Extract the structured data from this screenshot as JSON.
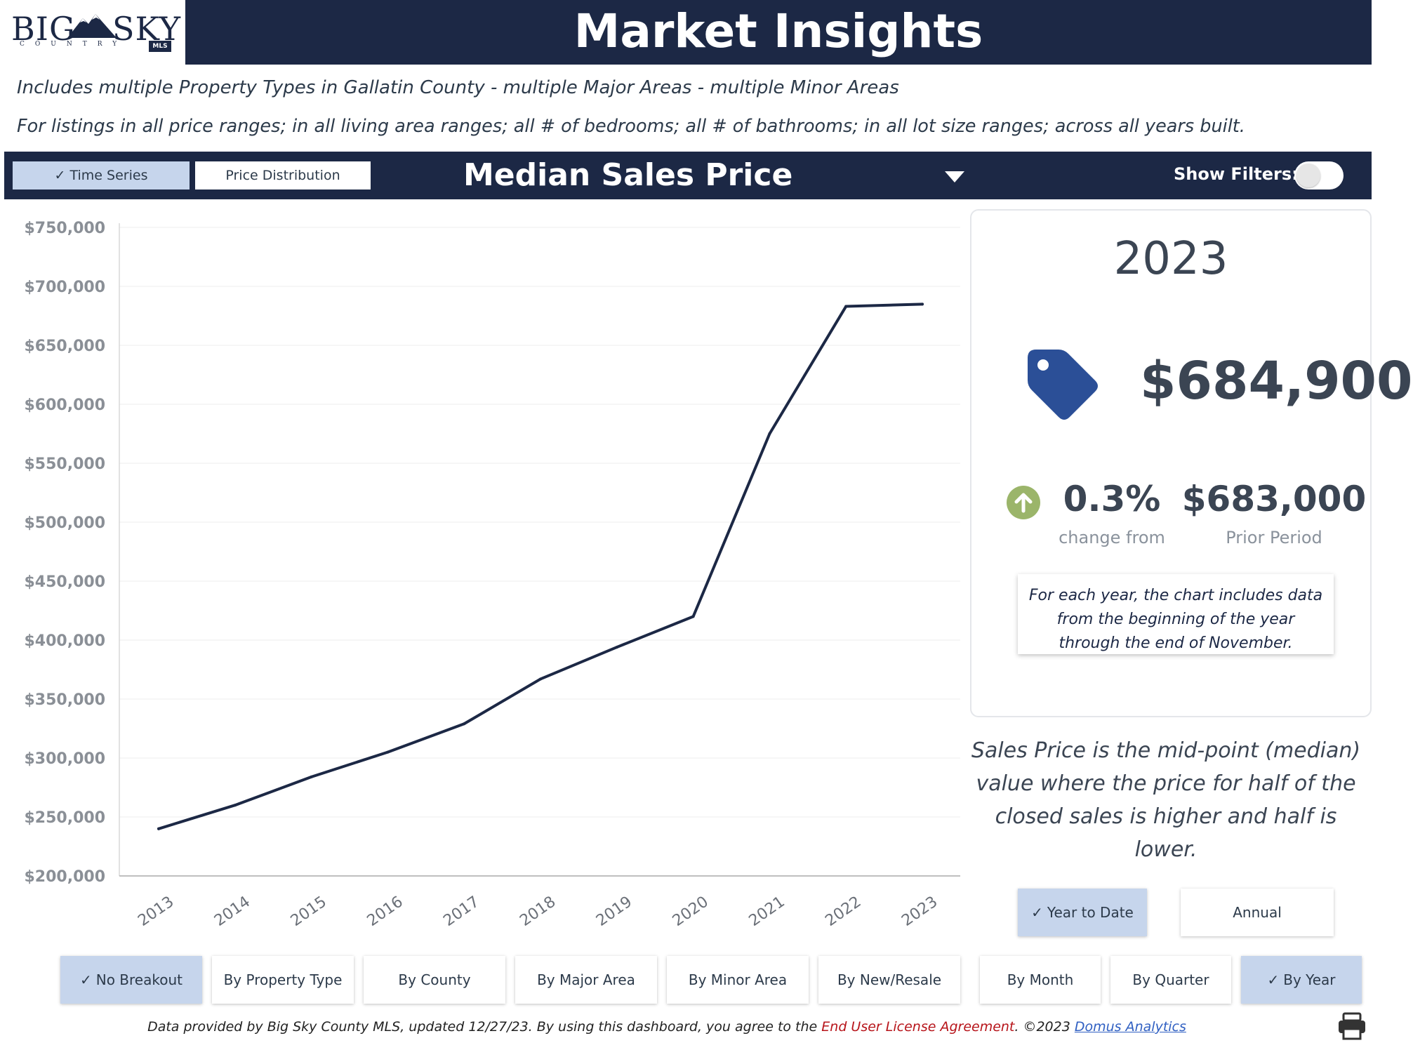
{
  "logo": {
    "word_left": "BIG",
    "word_right": "SKY",
    "sub": "COUNTRY",
    "badge": "MLS"
  },
  "header": {
    "title": "Market Insights"
  },
  "subtitles": {
    "line1": "Includes multiple Property Types in Gallatin County - multiple Major Areas - multiple Minor Areas",
    "line2": "For listings in all price ranges; in all living area ranges; all # of bedrooms; all # of bathrooms; in all lot size ranges; across all years built."
  },
  "toolbar": {
    "time_series": "Time Series",
    "price_distribution": "Price Distribution",
    "measure": "Median Sales Price",
    "show_filters": "Show Filters:"
  },
  "kpi": {
    "year": "2023",
    "value": "$684,900",
    "change_pct": "0.3%",
    "change_label": "change from",
    "prior_value": "$683,000",
    "prior_label": "Prior Period",
    "note": "For each year, the chart includes data from the beginning of the year through the end of November."
  },
  "definition": "Sales Price is the mid-point (median) value where the price for half of the closed sales is higher and half is lower.",
  "period_buttons": {
    "ytd": "Year to Date",
    "annual": "Annual"
  },
  "breakout_buttons": [
    {
      "label": "No Breakout",
      "selected": true
    },
    {
      "label": "By Property Type",
      "selected": false
    },
    {
      "label": "By County",
      "selected": false
    },
    {
      "label": "By Major Area",
      "selected": false
    },
    {
      "label": "By Minor Area",
      "selected": false
    },
    {
      "label": "By New/Resale",
      "selected": false
    }
  ],
  "interval_buttons": [
    {
      "label": "By Month",
      "selected": false
    },
    {
      "label": "By Quarter",
      "selected": false
    },
    {
      "label": "By Year",
      "selected": true
    }
  ],
  "footer": {
    "text1": "Data provided by Big Sky County MLS, updated 12/27/23.  By using this dashboard, you agree to the ",
    "eula": "End User License Agreement",
    "text2": ".  ©2023 ",
    "domus": "Domus Analytics"
  },
  "icons": {
    "tag": "price-tag-icon",
    "arrow": "arrow-up-circle-icon",
    "print": "print-icon",
    "check": "check-icon"
  },
  "colors": {
    "navy": "#1c2845",
    "selected": "#c6d5ec",
    "tag_blue": "#2b4f97",
    "up_green": "#9bb56a",
    "eula_red": "#b7141a",
    "link_blue": "#2f5fc2"
  },
  "chart_data": {
    "type": "line",
    "title": "",
    "xlabel": "",
    "ylabel": "",
    "x": [
      "2013",
      "2014",
      "2015",
      "2016",
      "2017",
      "2018",
      "2019",
      "2020",
      "2021",
      "2022",
      "2023"
    ],
    "series": [
      {
        "values": [
          240000,
          260000,
          284000,
          305000,
          329000,
          367000,
          394000,
          420000,
          575000,
          683000,
          684900
        ]
      }
    ],
    "ylim": [
      200000,
      750000
    ],
    "yticks": [
      200000,
      250000,
      300000,
      350000,
      400000,
      450000,
      500000,
      550000,
      600000,
      650000,
      700000,
      750000
    ],
    "ytick_labels": [
      "$200,000",
      "$250,000",
      "$300,000",
      "$350,000",
      "$400,000",
      "$450,000",
      "$500,000",
      "$550,000",
      "$600,000",
      "$650,000",
      "$700,000",
      "$750,000"
    ],
    "line_color": "#1c2845",
    "grid": true,
    "legend": "none"
  }
}
